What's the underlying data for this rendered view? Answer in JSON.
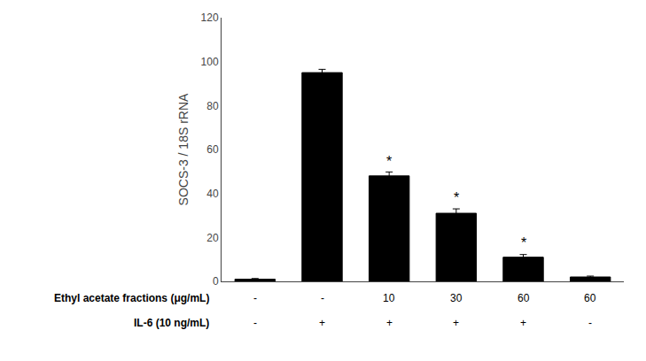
{
  "chart_data": {
    "type": "bar",
    "categories": [
      null,
      null,
      null,
      null,
      null,
      null
    ],
    "values": [
      1.0,
      95.0,
      48.0,
      31.0,
      11.0,
      2.0
    ],
    "errors": [
      0.3,
      1.5,
      1.8,
      2.0,
      1.2,
      0.4
    ],
    "color": "#000000",
    "ylabel": "SOCS-3 / 18S rRNA",
    "ylim": [
      0,
      120
    ],
    "yticks": [
      0,
      20,
      40,
      60,
      80,
      100,
      120
    ],
    "grid": false,
    "tick_labels": "y",
    "annotations": [
      {
        "text": "*",
        "category": 2,
        "y": 50.5
      },
      {
        "text": "*",
        "category": 3,
        "y": 34.0
      },
      {
        "text": "*",
        "category": 4,
        "y": 13.2
      }
    ],
    "rows": [
      {
        "label": "Ethyl acetate fractions (μg/mL)",
        "values": [
          "-",
          "-",
          "10",
          "30",
          "60",
          "60"
        ]
      },
      {
        "label": "IL-6 (10 ng/mL)",
        "values": [
          "-",
          "+",
          "+",
          "+",
          "+",
          "-"
        ]
      }
    ]
  }
}
